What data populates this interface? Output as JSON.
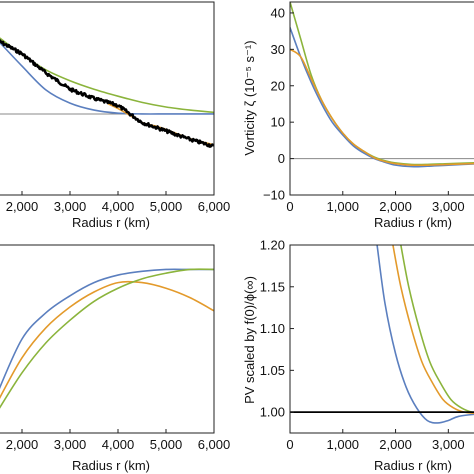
{
  "colors": {
    "blue": "#5b7fbf",
    "orange": "#e39a2b",
    "green": "#8bb43c",
    "black": "#000000",
    "gray": "#888888"
  },
  "chart_data": [
    {
      "type": "line",
      "panel": "top-left",
      "xlabel": "Radius r (km)",
      "ylabel": "",
      "xlim": [
        1500,
        6000
      ],
      "ylim": [
        -1.05,
        1.45
      ],
      "xticks": [
        2000,
        3000,
        4000,
        5000,
        6000
      ],
      "xticklabels": [
        "2,000",
        "3,000",
        "4,000",
        "5,000",
        "6,000"
      ],
      "hline": 0,
      "series": [
        {
          "color": "green",
          "x": [
            1500,
            2000,
            2500,
            3000,
            3500,
            4000,
            4500,
            5000,
            5500,
            6000
          ],
          "y": [
            1.0,
            0.77,
            0.57,
            0.43,
            0.32,
            0.23,
            0.15,
            0.09,
            0.05,
            0.02
          ]
        },
        {
          "color": "blue",
          "x": [
            1500,
            2000,
            2500,
            3000,
            3500,
            4000,
            4500,
            5000,
            5500,
            6000
          ],
          "y": [
            0.95,
            0.62,
            0.31,
            0.14,
            0.05,
            0.01,
            0.0,
            0.0,
            0.0,
            0.0
          ]
        },
        {
          "color": "orange",
          "x": [
            3800,
            4000,
            4200,
            4500,
            4800,
            5000,
            5500,
            6000
          ],
          "y": [
            0.13,
            0.07,
            0.0,
            -0.11,
            -0.16,
            -0.2,
            -0.32,
            -0.4
          ]
        },
        {
          "color": "black",
          "x": [
            1500,
            2000,
            2500,
            3000,
            3500,
            4000,
            4500,
            5000,
            5500,
            6000
          ],
          "y": [
            0.95,
            0.78,
            0.53,
            0.32,
            0.2,
            0.11,
            -0.11,
            -0.22,
            -0.33,
            -0.42
          ],
          "noisy": true
        }
      ]
    },
    {
      "type": "line",
      "panel": "top-right",
      "xlabel": "Radius r (km)",
      "ylabel": "Vorticity ζ (10⁻⁵ s⁻¹)",
      "xlim": [
        0,
        3600
      ],
      "ylim": [
        -10,
        43
      ],
      "xticks": [
        0,
        1000,
        2000,
        3000
      ],
      "xticklabels": [
        "0",
        "1,000",
        "2,000",
        "3,000"
      ],
      "yticks": [
        -10,
        0,
        10,
        20,
        30,
        40
      ],
      "yticklabels": [
        "−10",
        "0",
        "10",
        "20",
        "30",
        "40"
      ],
      "hline": 0,
      "series": [
        {
          "color": "green",
          "x": [
            0,
            200,
            400,
            600,
            800,
            1000,
            1200,
            1400,
            1600,
            1800,
            2000,
            2300,
            2600,
            3000,
            3600
          ],
          "y": [
            43,
            33,
            23,
            16,
            11,
            7,
            4,
            2,
            0.4,
            -0.6,
            -1.2,
            -1.6,
            -1.6,
            -1.4,
            -1.1
          ]
        },
        {
          "color": "blue",
          "x": [
            0,
            200,
            400,
            600,
            800,
            1000,
            1200,
            1400,
            1600,
            1800,
            2000,
            2300,
            2600,
            3000,
            3600
          ],
          "y": [
            36,
            28,
            21,
            15,
            10,
            6.5,
            3.5,
            1.5,
            0,
            -1,
            -1.8,
            -2.2,
            -2.1,
            -1.8,
            -1.4
          ]
        },
        {
          "color": "orange",
          "x": [
            0,
            200,
            400,
            600,
            800,
            1000,
            1200,
            1400,
            1600,
            1800,
            2000,
            2300,
            2600,
            3000,
            3600
          ],
          "y": [
            30,
            28,
            22,
            16,
            11,
            7,
            4,
            2,
            0.2,
            -0.8,
            -1.4,
            -1.8,
            -1.8,
            -1.6,
            -1.3
          ]
        }
      ]
    },
    {
      "type": "line",
      "panel": "bottom-left",
      "xlabel": "Radius r (km)",
      "ylabel": "",
      "xlim": [
        1500,
        6000
      ],
      "ylim": [
        0,
        1
      ],
      "xticks": [
        2000,
        3000,
        4000,
        5000,
        6000
      ],
      "xticklabels": [
        "2,000",
        "3,000",
        "4,000",
        "5,000",
        "6,000"
      ],
      "series": [
        {
          "color": "blue",
          "x": [
            1500,
            2000,
            2500,
            3000,
            3500,
            4000,
            4500,
            5000,
            5500,
            6000
          ],
          "y": [
            0.22,
            0.5,
            0.64,
            0.73,
            0.8,
            0.84,
            0.86,
            0.87,
            0.87,
            0.87
          ]
        },
        {
          "color": "orange",
          "x": [
            1500,
            2000,
            2500,
            3000,
            3500,
            4000,
            4500,
            5000,
            5500,
            6000
          ],
          "y": [
            0.17,
            0.4,
            0.56,
            0.67,
            0.75,
            0.8,
            0.8,
            0.77,
            0.72,
            0.65
          ]
        },
        {
          "color": "green",
          "x": [
            1500,
            2000,
            2500,
            3000,
            3500,
            4000,
            4500,
            5000,
            5500,
            6000
          ],
          "y": [
            0.12,
            0.32,
            0.48,
            0.6,
            0.7,
            0.77,
            0.82,
            0.85,
            0.87,
            0.87
          ]
        }
      ]
    },
    {
      "type": "line",
      "panel": "bottom-right",
      "xlabel": "Radius r (km)",
      "ylabel": "PV scaled by f(0)/ϕ(∞)",
      "xlim": [
        0,
        3600
      ],
      "ylim": [
        0.975,
        1.2
      ],
      "xticks": [
        0,
        1000,
        2000,
        3000
      ],
      "xticklabels": [
        "0",
        "1,000",
        "2,000",
        "3,000"
      ],
      "yticks": [
        1.0,
        1.05,
        1.1,
        1.15,
        1.2
      ],
      "yticklabels": [
        "1.00",
        "1.05",
        "1.10",
        "1.15",
        "1.20"
      ],
      "series": [
        {
          "color": "blue",
          "x": [
            1650,
            1800,
            2000,
            2200,
            2400,
            2600,
            2800,
            3000,
            3200,
            3600
          ],
          "y": [
            1.2,
            1.13,
            1.07,
            1.03,
            1.005,
            0.99,
            0.987,
            0.99,
            0.995,
            0.998
          ]
        },
        {
          "color": "orange",
          "x": [
            1950,
            2100,
            2300,
            2500,
            2700,
            2900,
            3100,
            3300,
            3600
          ],
          "y": [
            1.2,
            1.15,
            1.1,
            1.06,
            1.035,
            1.015,
            1.005,
            1.0,
            0.998
          ]
        },
        {
          "color": "green",
          "x": [
            2100,
            2250,
            2450,
            2650,
            2850,
            3050,
            3250,
            3450,
            3600
          ],
          "y": [
            1.2,
            1.15,
            1.1,
            1.06,
            1.035,
            1.015,
            1.005,
            1.0,
            1.0
          ]
        },
        {
          "color": "black",
          "x": [
            0,
            3600
          ],
          "y": [
            1.0,
            1.0
          ]
        }
      ]
    }
  ]
}
